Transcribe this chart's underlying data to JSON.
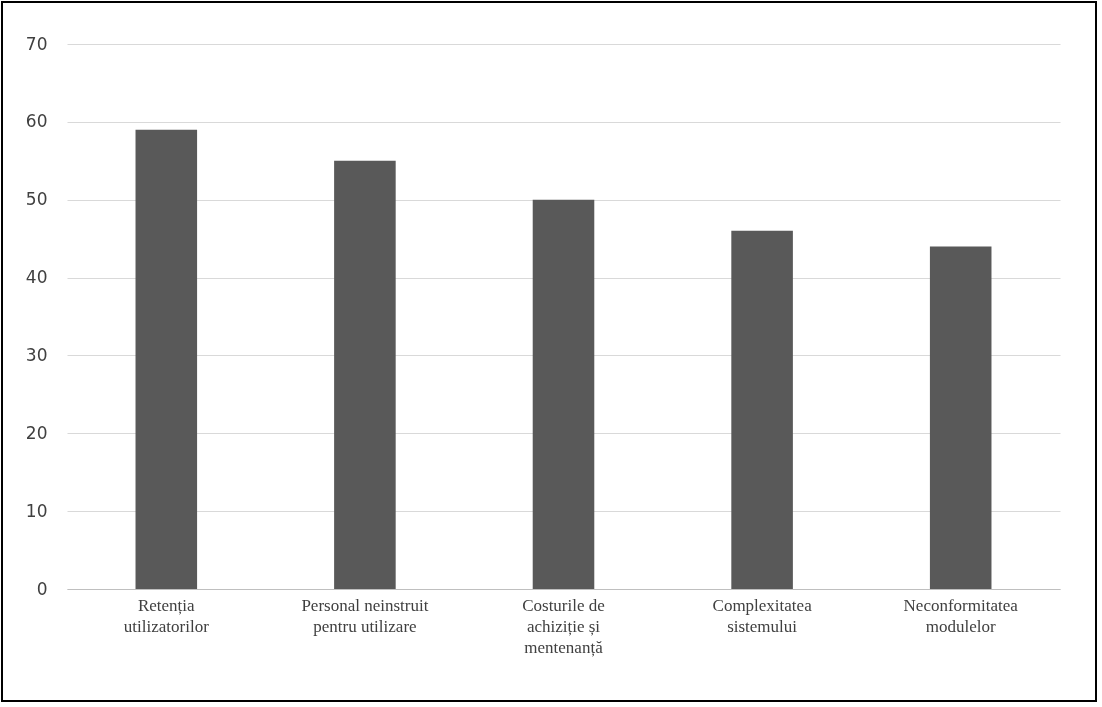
{
  "chart_data": {
    "type": "bar",
    "categories": [
      "Retenția\nutilizatorilor",
      "Personal neinstruit\npentru utilizare",
      "Costurile de\nachiziție și\nmentenanță",
      "Complexitatea\nsistemului",
      "Neconformitatea\nmodulelor"
    ],
    "values": [
      59,
      55,
      50,
      46,
      44
    ],
    "color": "#595959",
    "ylim": [
      0,
      70
    ],
    "yticks": [
      0,
      10,
      20,
      30,
      40,
      50,
      60,
      70
    ],
    "grid": "y"
  }
}
